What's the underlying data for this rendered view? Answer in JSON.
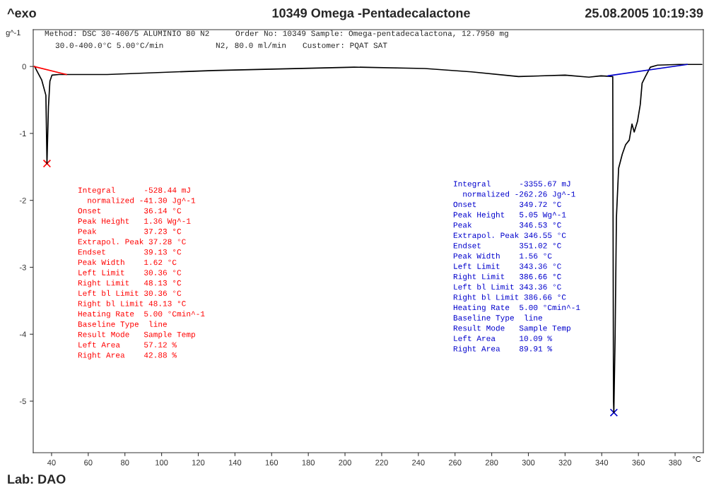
{
  "chart_data": {
    "type": "line",
    "title": "10349 Omega -Pentadecalactone",
    "xlabel": "°C",
    "ylabel": "g^-1",
    "xlim": [
      30.0,
      395.4
    ],
    "ylim": [
      -5.77,
      0.55
    ],
    "xticks": [
      40,
      60,
      80,
      100,
      120,
      140,
      160,
      180,
      200,
      220,
      240,
      260,
      280,
      300,
      320,
      340,
      360,
      380
    ],
    "yticks": [
      0,
      -1,
      -2,
      -3,
      -4,
      -5
    ],
    "grid": false,
    "legend": false,
    "series": [
      {
        "color": "#000000",
        "x": [
          30.8,
          31.9,
          34.6,
          36.9,
          37.5,
          38.3,
          39.1,
          40.2,
          44,
          48,
          70.4,
          128,
          205,
          243.5,
          269,
          294.6,
          320,
          333,
          339.6,
          346,
          346.4,
          346.6,
          347.3,
          348,
          349.2,
          351.2,
          353,
          355,
          356.5,
          357.7,
          359.5,
          361,
          362,
          363.8,
          366.5,
          370.4,
          382,
          394.6
        ],
        "values": [
          0.0,
          -0.06,
          -0.2,
          -0.43,
          -1.45,
          -0.6,
          -0.22,
          -0.13,
          -0.12,
          -0.12,
          -0.12,
          -0.06,
          -0.01,
          -0.03,
          -0.08,
          -0.15,
          -0.13,
          -0.16,
          -0.14,
          -0.15,
          -5.0,
          -5.17,
          -4.03,
          -2.26,
          -1.52,
          -1.31,
          -1.17,
          -1.1,
          -0.86,
          -0.98,
          -0.82,
          -0.57,
          -0.25,
          -0.15,
          -0.01,
          0.02,
          0.03,
          0.03
        ]
      },
      {
        "color": "#ff0000",
        "x": [
          30.36,
          48.13
        ],
        "values": [
          0.0,
          -0.12
        ]
      },
      {
        "color": "#0000cc",
        "x": [
          343.36,
          386.66
        ],
        "values": [
          -0.14,
          0.03
        ]
      },
      {
        "type": "scatter",
        "marker": "cross",
        "color": "#ff0000",
        "x": [
          37.5
        ],
        "values": [
          -1.45
        ]
      },
      {
        "type": "scatter",
        "marker": "cross",
        "color": "#0000cc",
        "x": [
          346.6
        ],
        "values": [
          -5.17
        ]
      }
    ],
    "annotations": [
      "^exo",
      "25.08.2005 10:19:39",
      "Method: DSC 30-400/5 ALUMINIO 80 N2",
      "30.0-400.0°C 5.00°C/min",
      "Order No: 10349 Sample: Omega-pentadecalactona, 12.7950 mg",
      "N2, 80.0 ml/min",
      "Customer: PQAT SAT",
      "Lab: DAO",
      "Integral      -528.44 mJ",
      "  normalized -41.30 Jg^-1",
      "Onset         36.14 °C",
      "Peak Height   1.36 Wg^-1",
      "Peak          37.23 °C",
      "Extrapol. Peak 37.28 °C",
      "Endset        39.13 °C",
      "Peak Width    1.62 °C",
      "Left Limit    30.36 °C",
      "Right Limit   48.13 °C",
      "Left bl Limit 30.36 °C",
      "Right bl Limit 48.13 °C",
      "Heating Rate  5.00 °Cmin^-1",
      "Baseline Type  line",
      "Result Mode   Sample Temp",
      "Left Area     57.12 %",
      "Right Area    42.88 %",
      "Integral      -3355.67 mJ",
      "  normalized -262.26 Jg^-1",
      "Onset         349.72 °C",
      "Peak Height   5.05 Wg^-1",
      "Peak          346.53 °C",
      "Extrapol. Peak 346.55 °C",
      "Endset        351.02 °C",
      "Peak Width    1.56 °C",
      "Left Limit    343.36 °C",
      "Right Limit   386.66 °C",
      "Left bl Limit 343.36 °C",
      "Right bl Limit 386.66 °C",
      "Heating Rate  5.00 °Cmin^-1",
      "Baseline Type  line",
      "Result Mode   Sample Temp",
      "Left Area     10.09 %",
      "Right Area    89.91 %"
    ]
  }
}
